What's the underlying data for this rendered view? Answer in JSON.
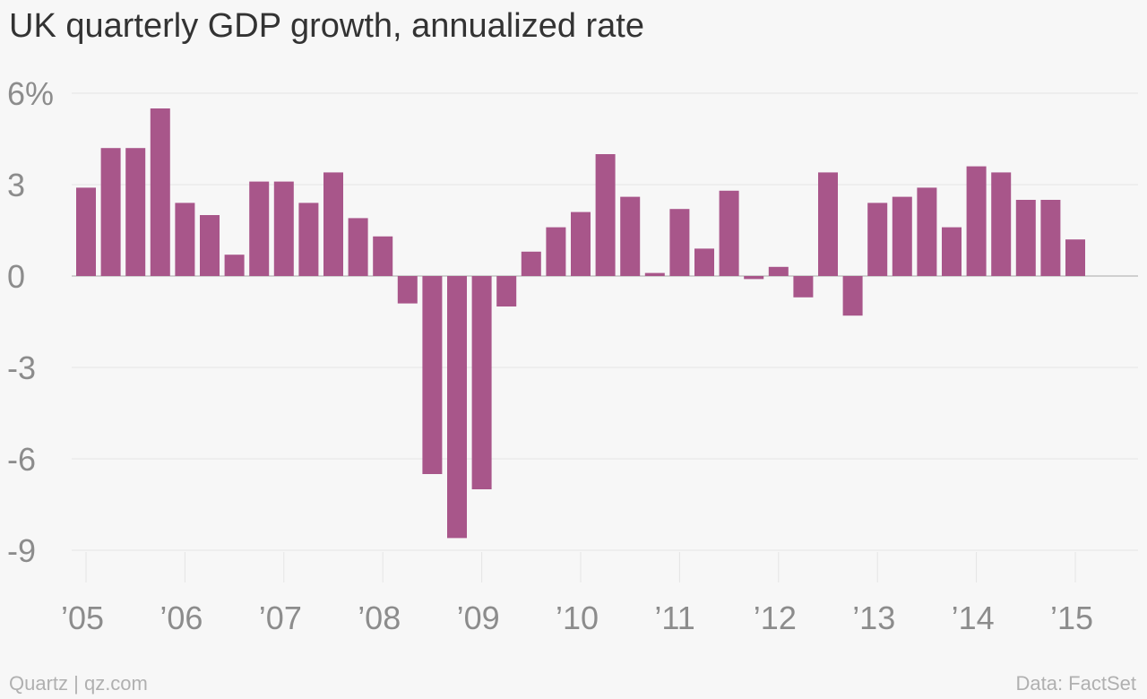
{
  "chart_data": {
    "type": "bar",
    "title": "UK quarterly GDP growth, annualized rate",
    "xlabel": "",
    "ylabel": "",
    "unit": "%",
    "ylim": [
      -9.9,
      6
    ],
    "yticks": [
      6,
      3,
      0,
      -3,
      -6,
      -9
    ],
    "ytick_labels": [
      "6%",
      "3",
      "0",
      "-3",
      "-6",
      "-9"
    ],
    "xticks": [
      {
        "label": "’05",
        "at": "2005-Q1"
      },
      {
        "label": "’06",
        "at": "2006-Q1"
      },
      {
        "label": "’07",
        "at": "2007-Q1"
      },
      {
        "label": "’08",
        "at": "2008-Q1"
      },
      {
        "label": "’09",
        "at": "2009-Q1"
      },
      {
        "label": "’10",
        "at": "2010-Q1"
      },
      {
        "label": "’11",
        "at": "2011-Q1"
      },
      {
        "label": "’12",
        "at": "2012-Q1"
      },
      {
        "label": "’13",
        "at": "2013-Q1"
      },
      {
        "label": "’14",
        "at": "2014-Q1"
      },
      {
        "label": "’15",
        "at": "2015-Q1"
      }
    ],
    "categories": [
      "2005-Q1",
      "2005-Q2",
      "2005-Q3",
      "2005-Q4",
      "2006-Q1",
      "2006-Q2",
      "2006-Q3",
      "2006-Q4",
      "2007-Q1",
      "2007-Q2",
      "2007-Q3",
      "2007-Q4",
      "2008-Q1",
      "2008-Q2",
      "2008-Q3",
      "2008-Q4",
      "2009-Q1",
      "2009-Q2",
      "2009-Q3",
      "2009-Q4",
      "2010-Q1",
      "2010-Q2",
      "2010-Q3",
      "2010-Q4",
      "2011-Q1",
      "2011-Q2",
      "2011-Q3",
      "2011-Q4",
      "2012-Q1",
      "2012-Q2",
      "2012-Q3",
      "2012-Q4",
      "2013-Q1",
      "2013-Q2",
      "2013-Q3",
      "2013-Q4",
      "2014-Q1",
      "2014-Q2",
      "2014-Q3",
      "2014-Q4",
      "2015-Q1"
    ],
    "values": [
      2.9,
      4.2,
      4.2,
      5.5,
      2.4,
      2.0,
      0.7,
      3.1,
      3.1,
      2.4,
      3.4,
      1.9,
      1.3,
      -0.9,
      -6.5,
      -8.6,
      -7.0,
      -1.0,
      0.8,
      1.6,
      2.1,
      4.0,
      2.6,
      0.1,
      2.2,
      0.9,
      2.8,
      -0.1,
      0.3,
      -0.7,
      3.4,
      -1.3,
      2.4,
      2.6,
      2.9,
      1.6,
      3.6,
      3.4,
      2.5,
      2.5,
      1.2
    ],
    "bar_color": "#a8568a",
    "grid": true
  },
  "footer": {
    "source_left": "Quartz | qz.com",
    "source_right": "Data: FactSet"
  }
}
